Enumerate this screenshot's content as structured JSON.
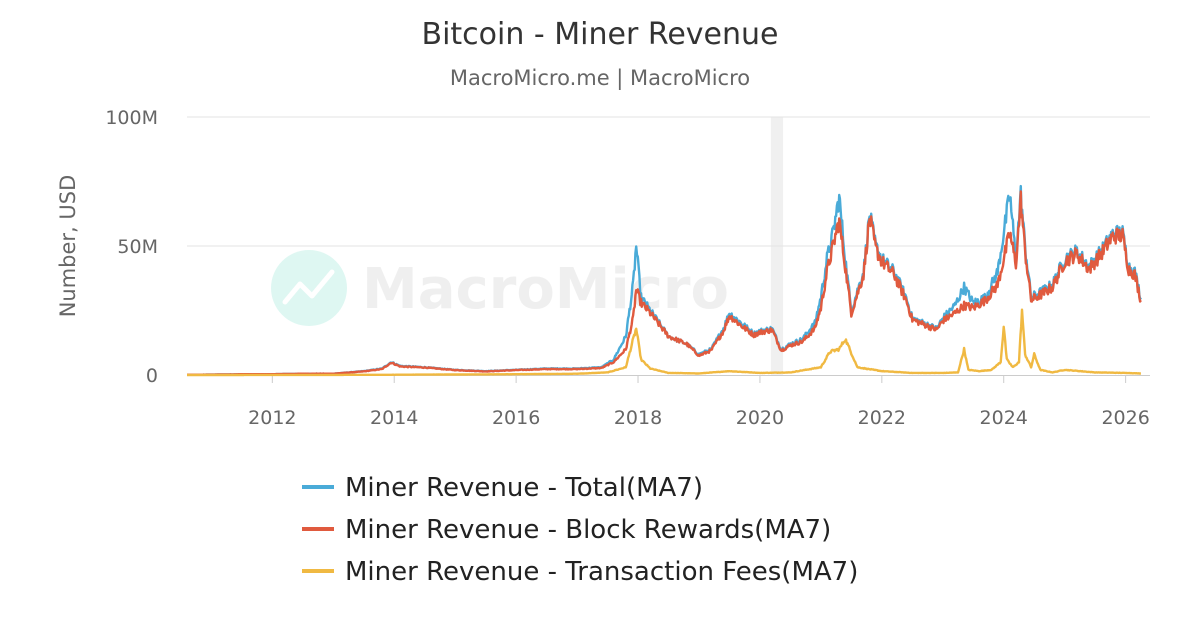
{
  "chart_data": {
    "type": "line",
    "title": "Bitcoin - Miner Revenue",
    "subtitle": "MacroMicro.me | MacroMicro",
    "watermark": "MacroMicro",
    "ylabel": "Number, USD",
    "xlim": [
      2010.6,
      2026.4
    ],
    "ylim": [
      0,
      100000000
    ],
    "x_ticks": [
      2012,
      2014,
      2016,
      2018,
      2020,
      2022,
      2024,
      2026
    ],
    "y_ticks": [
      {
        "value": 0,
        "label": "0"
      },
      {
        "value": 50000000,
        "label": "50M"
      },
      {
        "value": 100000000,
        "label": "100M"
      }
    ],
    "grid": "horizontal",
    "legend_position": "bottom",
    "shaded_band": [
      2020.18,
      2020.38
    ],
    "series": [
      {
        "name": "Miner Revenue - Total(MA7)",
        "color": "#4aabd8",
        "x": [
          2010.6,
          2011.0,
          2011.5,
          2012.0,
          2012.5,
          2013.0,
          2013.5,
          2013.8,
          2013.95,
          2014.1,
          2014.5,
          2015.0,
          2015.5,
          2016.0,
          2016.5,
          2017.0,
          2017.4,
          2017.6,
          2017.8,
          2017.92,
          2017.97,
          2018.05,
          2018.2,
          2018.5,
          2018.8,
          2019.0,
          2019.2,
          2019.4,
          2019.5,
          2019.7,
          2019.9,
          2020.0,
          2020.2,
          2020.35,
          2020.5,
          2020.7,
          2020.9,
          2021.0,
          2021.1,
          2021.2,
          2021.3,
          2021.4,
          2021.5,
          2021.7,
          2021.8,
          2021.9,
          2022.0,
          2022.2,
          2022.4,
          2022.5,
          2022.7,
          2022.9,
          2023.0,
          2023.2,
          2023.35,
          2023.5,
          2023.7,
          2023.9,
          2024.0,
          2024.1,
          2024.2,
          2024.28,
          2024.35,
          2024.45,
          2024.6,
          2024.8,
          2025.0,
          2025.2,
          2025.4,
          2025.6,
          2025.8,
          2025.95,
          2026.05,
          2026.15,
          2026.25
        ],
        "y": [
          100000,
          150000,
          300000,
          300000,
          500000,
          500000,
          1500000,
          2500000,
          5000000,
          3500000,
          3000000,
          2000000,
          1500000,
          2000000,
          2500000,
          2500000,
          3000000,
          6000000,
          15000000,
          35000000,
          50000000,
          30000000,
          25000000,
          15000000,
          12000000,
          8000000,
          10000000,
          18000000,
          24000000,
          20000000,
          16000000,
          17000000,
          18000000,
          10000000,
          12000000,
          14000000,
          20000000,
          30000000,
          45000000,
          55000000,
          69000000,
          45000000,
          25000000,
          40000000,
          62000000,
          50000000,
          45000000,
          40000000,
          30000000,
          22000000,
          20000000,
          18000000,
          22000000,
          27000000,
          34000000,
          28000000,
          30000000,
          40000000,
          55000000,
          70000000,
          45000000,
          70000000,
          50000000,
          30000000,
          32000000,
          35000000,
          45000000,
          48000000,
          42000000,
          48000000,
          55000000,
          55000000,
          42000000,
          40000000,
          30000000
        ]
      },
      {
        "name": "Miner Revenue - Block Rewards(MA7)",
        "color": "#e05a3e",
        "x": [
          2010.6,
          2011.0,
          2011.5,
          2012.0,
          2012.5,
          2013.0,
          2013.5,
          2013.8,
          2013.95,
          2014.1,
          2014.5,
          2015.0,
          2015.5,
          2016.0,
          2016.5,
          2017.0,
          2017.4,
          2017.6,
          2017.8,
          2017.92,
          2017.97,
          2018.05,
          2018.2,
          2018.5,
          2018.8,
          2019.0,
          2019.2,
          2019.4,
          2019.5,
          2019.7,
          2019.9,
          2020.0,
          2020.2,
          2020.35,
          2020.5,
          2020.7,
          2020.9,
          2021.0,
          2021.1,
          2021.2,
          2021.3,
          2021.4,
          2021.5,
          2021.7,
          2021.8,
          2021.9,
          2022.0,
          2022.2,
          2022.4,
          2022.5,
          2022.7,
          2022.9,
          2023.0,
          2023.2,
          2023.35,
          2023.5,
          2023.7,
          2023.9,
          2024.0,
          2024.1,
          2024.2,
          2024.28,
          2024.35,
          2024.45,
          2024.6,
          2024.8,
          2025.0,
          2025.2,
          2025.4,
          2025.6,
          2025.8,
          2025.95,
          2026.05,
          2026.15,
          2026.25
        ],
        "y": [
          100000,
          150000,
          300000,
          300000,
          500000,
          500000,
          1400000,
          2300000,
          4800000,
          3300000,
          2900000,
          1900000,
          1400000,
          1900000,
          2300000,
          2300000,
          2700000,
          5000000,
          10000000,
          22000000,
          33000000,
          28000000,
          24000000,
          15000000,
          12000000,
          7500000,
          9500000,
          17000000,
          23000000,
          19000000,
          15500000,
          16500000,
          17500000,
          9500000,
          11500000,
          13000000,
          18000000,
          26000000,
          40000000,
          50000000,
          60000000,
          42000000,
          24000000,
          39000000,
          61000000,
          49000000,
          44000000,
          39000000,
          29000000,
          21500000,
          19500000,
          17500000,
          21000000,
          24000000,
          27000000,
          26000000,
          29000000,
          35000000,
          45000000,
          55000000,
          43000000,
          68000000,
          48000000,
          29000000,
          31000000,
          34000000,
          44000000,
          47000000,
          41000000,
          47000000,
          54000000,
          54000000,
          41000000,
          39000000,
          29000000
        ]
      },
      {
        "name": "Miner Revenue - Transaction Fees(MA7)",
        "color": "#f0b942",
        "x": [
          2010.6,
          2013.0,
          2014.0,
          2016.0,
          2017.0,
          2017.5,
          2017.8,
          2017.9,
          2017.97,
          2018.05,
          2018.2,
          2018.5,
          2019.0,
          2019.5,
          2020.0,
          2020.5,
          2021.0,
          2021.15,
          2021.3,
          2021.4,
          2021.6,
          2022.0,
          2022.5,
          2023.0,
          2023.25,
          2023.35,
          2023.42,
          2023.6,
          2023.8,
          2023.95,
          2024.0,
          2024.05,
          2024.15,
          2024.25,
          2024.3,
          2024.35,
          2024.45,
          2024.5,
          2024.6,
          2024.8,
          2025.0,
          2025.5,
          2026.0,
          2026.25
        ],
        "y": [
          0,
          50000,
          100000,
          300000,
          500000,
          1000000,
          3000000,
          12000000,
          18000000,
          6000000,
          2500000,
          800000,
          600000,
          1500000,
          800000,
          1000000,
          3000000,
          9000000,
          10000000,
          14000000,
          3000000,
          1500000,
          800000,
          800000,
          1000000,
          10000000,
          2000000,
          1500000,
          2000000,
          5000000,
          19000000,
          6000000,
          3000000,
          5000000,
          25000000,
          8000000,
          3000000,
          8000000,
          2000000,
          1000000,
          2000000,
          1000000,
          800000,
          600000
        ]
      }
    ]
  }
}
